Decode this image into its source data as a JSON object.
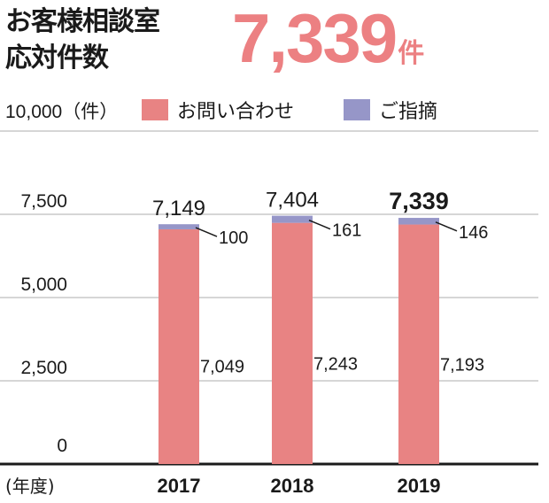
{
  "header": {
    "title_line1": "お客様相談室",
    "title_line2": "応対件数",
    "total_value": "7,339",
    "total_unit": "件"
  },
  "y_axis_top_label": "10,000（件）",
  "x_axis_unit_label": "(年度)",
  "legend": [
    {
      "label": "お問い合わせ",
      "color": "#e88383"
    },
    {
      "label": "ご指摘",
      "color": "#9696c8"
    }
  ],
  "chart_data": {
    "type": "bar",
    "stacked": true,
    "categories": [
      "2017",
      "2018",
      "2019"
    ],
    "series": [
      {
        "name": "お問い合わせ",
        "values": [
          7049,
          7243,
          7193
        ],
        "labels": [
          "7,049",
          "7,243",
          "7,193"
        ],
        "color": "#e88383"
      },
      {
        "name": "ご指摘",
        "values": [
          100,
          161,
          146
        ],
        "labels": [
          "100",
          "161",
          "146"
        ],
        "color": "#9696c8"
      }
    ],
    "totals": [
      "7,149",
      "7,404",
      "7,339"
    ],
    "highlight_total_index": 2,
    "ylim": [
      0,
      10000
    ],
    "yticks": [
      0,
      2500,
      5000,
      7500,
      10000
    ],
    "ytick_labels": [
      "0",
      "2,500",
      "5,000",
      "7,500",
      "10,000"
    ],
    "grid": true
  }
}
